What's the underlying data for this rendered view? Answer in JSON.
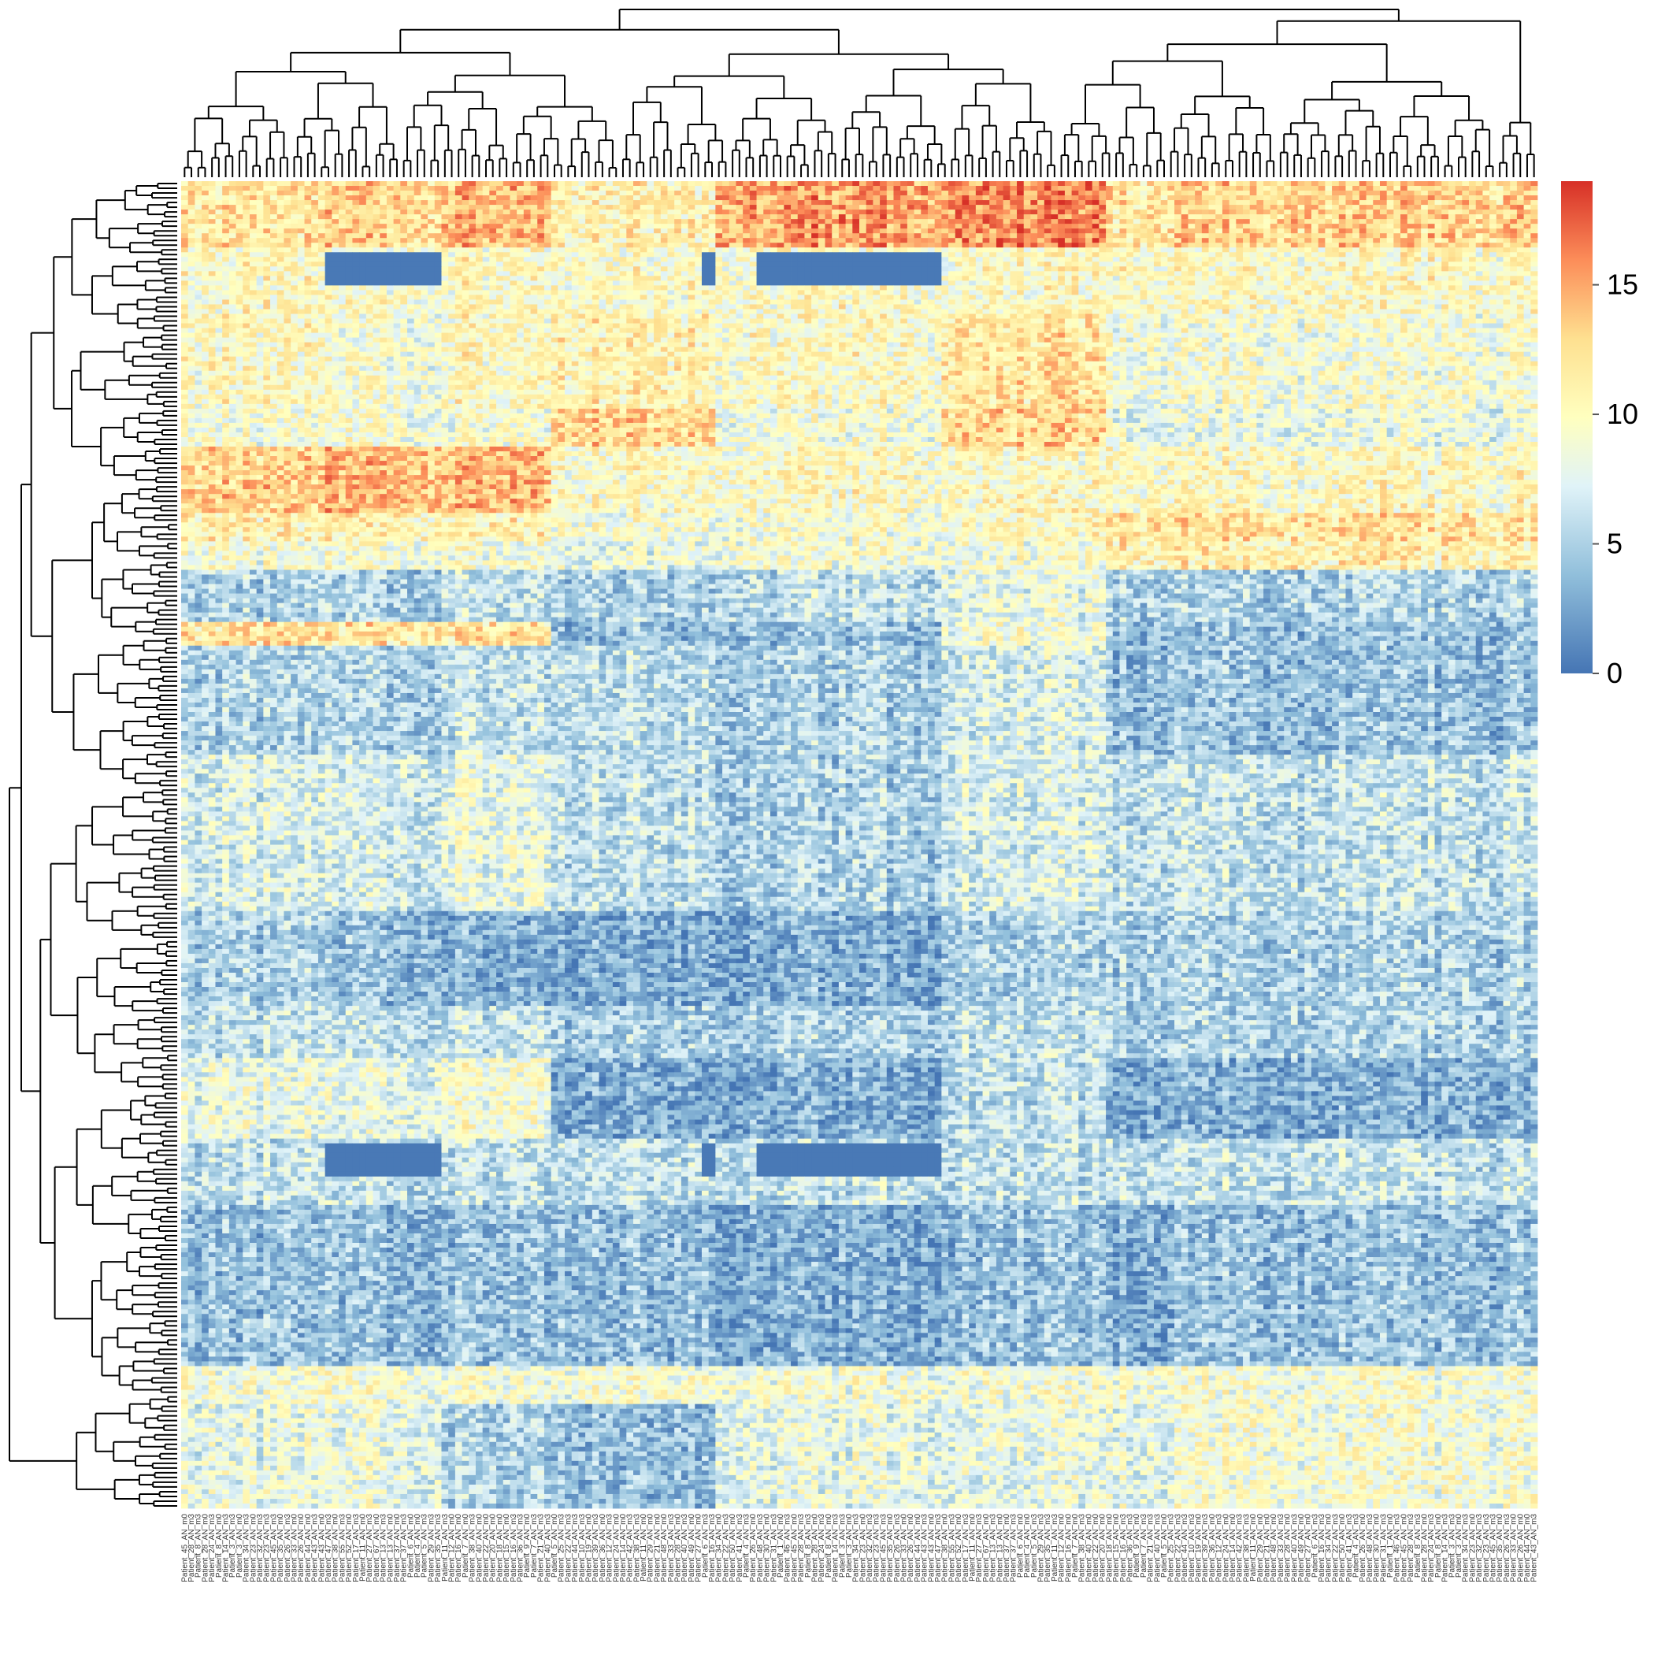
{
  "chart_data": {
    "type": "heatmap",
    "title": "",
    "xlabel": "",
    "ylabel": "",
    "clustering": {
      "rows": true,
      "columns": true
    },
    "color_scale": {
      "min": 0,
      "max": 19,
      "stops": [
        "#4575b4",
        "#91bfdb",
        "#e0f3f8",
        "#ffffbf",
        "#fee090",
        "#fc8d59",
        "#d73027"
      ],
      "legend_ticks": [
        "0",
        "5",
        "10",
        "15"
      ],
      "legend_tick_values": [
        0,
        5,
        10,
        15
      ]
    },
    "column_labels": [
      "Patient_45_AN_m0",
      "Patient_28_AN_m3",
      "Patient_8_AN_m3",
      "Patient_28_AN_m0",
      "Patient_24_AN_m3",
      "Patient_8_AN_m0",
      "Patient_14_AN_m3",
      "Patient_3_AN_m3",
      "Patient_3_AN_m0",
      "Patient_34_AN_m3",
      "Patient_23_AN_m0",
      "Patient_32_AN_m3",
      "Patient_23_AN_m3",
      "Patient_45_AN_m3",
      "Patient_35_AN_m0",
      "Patient_26_AN_m3",
      "Patient_33_AN_m0",
      "Patient_26_AN_m0",
      "Patient_44_AN_m0",
      "Patient_43_AN_m3",
      "Patient_43_AN_m0",
      "Patient_47_AN_m3",
      "Patient_38_AN_m0",
      "Patient_55_AN_m3",
      "Patient_52_AN_m0",
      "Patient_17_AN_m3",
      "Patient_11_AN_m0",
      "Patient_27_AN_m3",
      "Patient_67_AN_m0",
      "Patient_13_AN_m3",
      "Patient_13_AN_m0",
      "Patient_37_AN_m0",
      "Patient_37_AN_m3",
      "Patient_6_AN_m0",
      "Patient_4_AN_m0",
      "Patient_5_AN_m3",
      "Patient_29_AN_m3",
      "Patient_35_AN_m3",
      "Patient_11_AN_m3",
      "Patient_12_AN_m0",
      "Patient_16_AN_m0",
      "Patient_7_AN_m0",
      "Patient_38_AN_m3",
      "Patient_40_AN_m0",
      "Patient_22_AN_m0",
      "Patient_20_AN_m0",
      "Patient_18_AN_m0",
      "Patient_15_AN_m0",
      "Patient_16_AN_m3",
      "Patient_36_AN_m3",
      "Patient_9_AN_m0",
      "Patient_7_AN_m3",
      "Patient_21_AN_m3",
      "Patient_40_AN_m3",
      "Patient_5_AN_m0",
      "Patient_25_AN_m3",
      "Patient_22_AN_m3",
      "Patient_44_AN_m3",
      "Patient_10_AN_m3",
      "Patient_19_AN_m0",
      "Patient_39_AN_m3",
      "Patient_36_AN_m0",
      "Patient_12_AN_m3",
      "Patient_24_AN_m0",
      "Patient_14_AN_m0",
      "Patient_42_AN_m3",
      "Patient_38_AN_m3",
      "Patient_11_AN_m0",
      "Patient_29_AN_m0",
      "Patient_21_AN_m0",
      "Patient_48_AN_m0",
      "Patient_33_AN_m3",
      "Patient_28_AN_m0",
      "Patient_40_AN_m3",
      "Patient_49_AN_m0",
      "Patient_27_AN_m0",
      "Patient_6_AN_m3",
      "Patient_16_AN_m3",
      "Patient_34_AN_m0",
      "Patient_22_AN_m3",
      "Patient_50_AN_m0",
      "Patient_41_AN_m3",
      "Patient_4_AN_m3",
      "Patient_26_AN_m0",
      "Patient_48_AN_m3",
      "Patient_30_AN_m0",
      "Patient_31_AN_m3",
      "Patient_1_AN_m0",
      "Patient_46_AN_m3"
    ],
    "column_labels_note": "rotated labels visible in the image; rendered under the heatmap",
    "n_rows": 280,
    "n_columns": 198,
    "row_bands": [
      {
        "rows": "top",
        "description_values": [
          14,
          18
        ]
      },
      {
        "rows": "lower-middle",
        "description_values": [
          1,
          6
        ]
      },
      {
        "rows": "bottom",
        "description_values": [
          7,
          11
        ]
      }
    ]
  }
}
